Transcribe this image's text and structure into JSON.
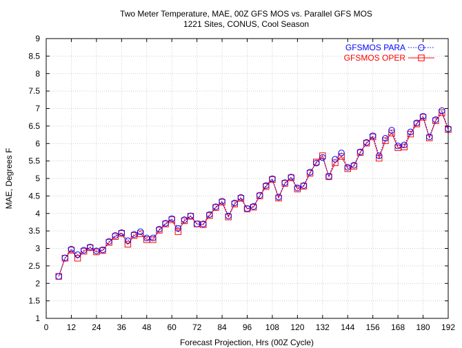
{
  "chart_data": {
    "type": "line",
    "title": "Two Meter Temperature, MAE, 00Z GFS MOS vs. Parallel GFS MOS",
    "subtitle": "1221 Sites, CONUS, Cool Season",
    "xlabel": "Forecast Projection, Hrs (00Z Cycle)",
    "ylabel": "MAE, Degrees F",
    "xlim": [
      0,
      192
    ],
    "ylim": [
      1,
      9
    ],
    "x_ticks": [
      0,
      12,
      24,
      36,
      48,
      60,
      72,
      84,
      96,
      108,
      120,
      132,
      144,
      156,
      168,
      180,
      192
    ],
    "y_ticks": [
      1,
      1.5,
      2,
      2.5,
      3,
      3.5,
      4,
      4.5,
      5,
      5.5,
      6,
      6.5,
      7,
      7.5,
      8,
      8.5,
      9
    ],
    "grid": true,
    "legend_position": "top-right",
    "x": [
      6,
      9,
      12,
      15,
      18,
      21,
      24,
      27,
      30,
      33,
      36,
      39,
      42,
      45,
      48,
      51,
      54,
      57,
      60,
      63,
      66,
      69,
      72,
      75,
      78,
      81,
      84,
      87,
      90,
      93,
      96,
      99,
      102,
      105,
      108,
      111,
      114,
      117,
      120,
      123,
      126,
      129,
      132,
      135,
      138,
      141,
      144,
      147,
      150,
      153,
      156,
      159,
      162,
      165,
      168,
      171,
      174,
      177,
      180,
      183,
      186,
      189,
      192
    ],
    "series": [
      {
        "name": "GFSMOS PARA",
        "color": "#0000ff",
        "marker": "circle",
        "line_style": "dotted",
        "values": [
          2.2,
          2.73,
          2.98,
          2.82,
          2.95,
          3.04,
          2.93,
          2.96,
          3.2,
          3.37,
          3.45,
          3.22,
          3.4,
          3.48,
          3.3,
          3.3,
          3.55,
          3.72,
          3.85,
          3.57,
          3.82,
          3.93,
          3.7,
          3.7,
          3.97,
          4.19,
          4.35,
          3.93,
          4.3,
          4.46,
          4.14,
          4.2,
          4.52,
          4.8,
          4.99,
          4.47,
          4.88,
          5.04,
          4.73,
          4.8,
          5.18,
          5.44,
          5.6,
          5.06,
          5.55,
          5.73,
          5.32,
          5.38,
          5.76,
          6.03,
          6.22,
          5.65,
          6.15,
          6.38,
          5.93,
          5.96,
          6.33,
          6.59,
          6.78,
          6.19,
          6.68,
          6.94,
          6.42
        ]
      },
      {
        "name": "GFSMOS OPER",
        "color": "#ff0000",
        "marker": "square",
        "line_style": "solid",
        "values": [
          2.2,
          2.72,
          2.95,
          2.72,
          2.92,
          3.02,
          2.9,
          2.94,
          3.17,
          3.34,
          3.43,
          3.12,
          3.37,
          3.42,
          3.25,
          3.25,
          3.52,
          3.7,
          3.82,
          3.48,
          3.79,
          3.92,
          3.7,
          3.68,
          3.94,
          4.17,
          4.32,
          3.9,
          4.27,
          4.43,
          4.13,
          4.18,
          4.5,
          4.77,
          4.97,
          4.44,
          4.86,
          5.02,
          4.7,
          4.78,
          5.15,
          5.47,
          5.65,
          5.05,
          5.45,
          5.63,
          5.28,
          5.35,
          5.74,
          6.01,
          6.19,
          5.58,
          6.08,
          6.3,
          5.88,
          5.9,
          6.27,
          6.56,
          6.75,
          6.16,
          6.65,
          6.88,
          6.4
        ]
      }
    ]
  }
}
